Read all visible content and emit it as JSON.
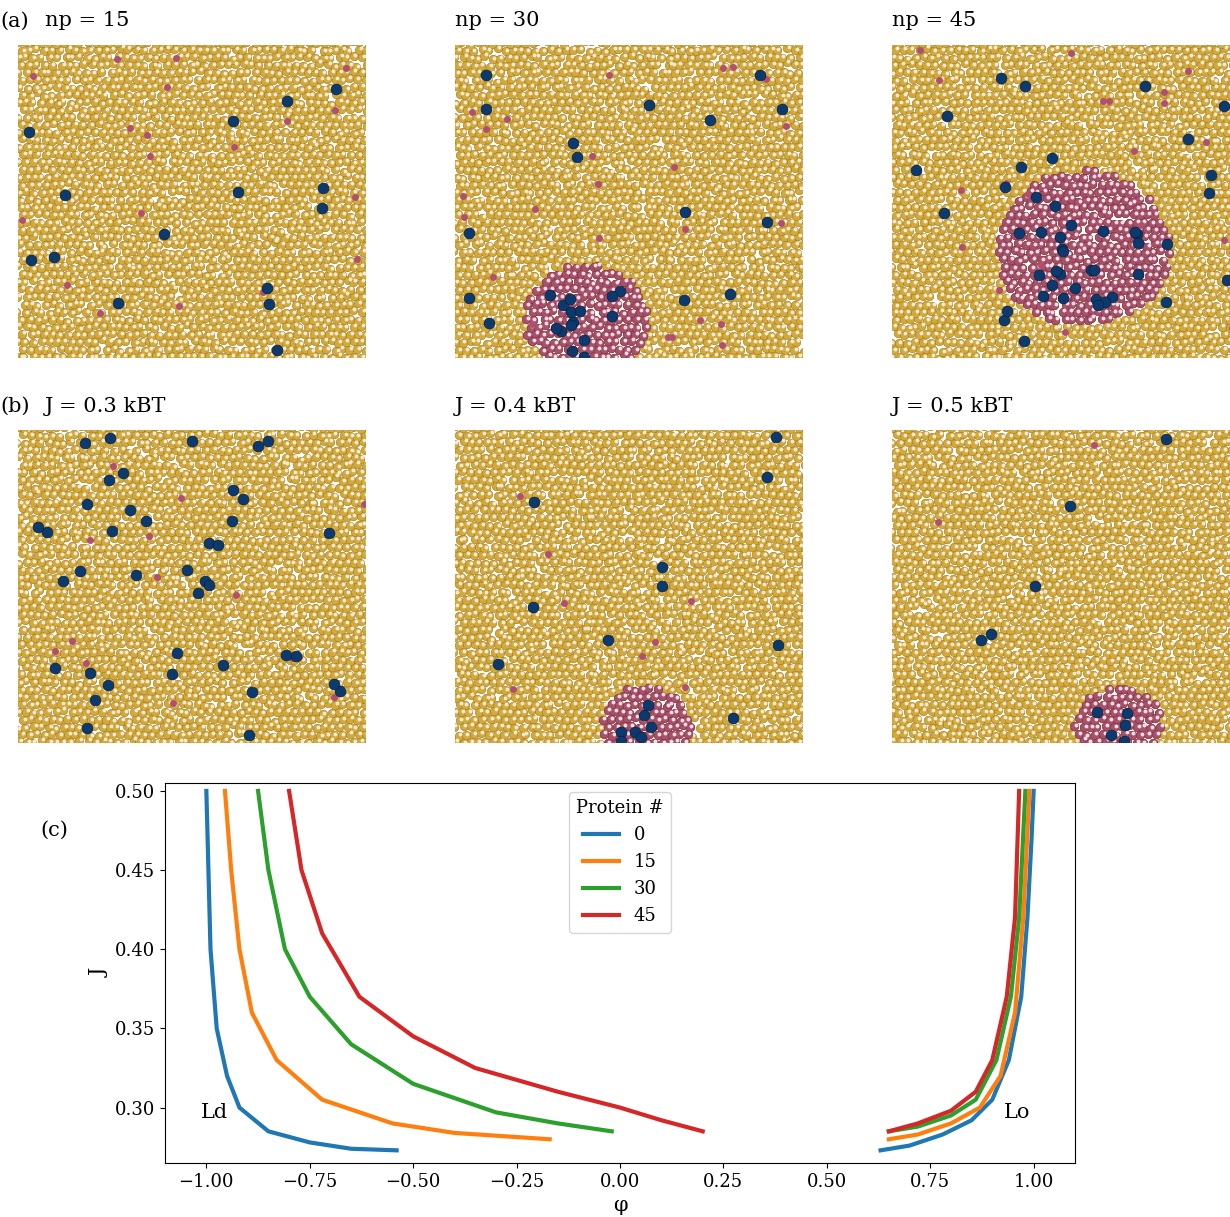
{
  "panels": [
    {
      "label": "(a)",
      "titles": [
        "np = 15",
        "np = 30",
        "np = 45"
      ]
    },
    {
      "label": "(b)",
      "titles": [
        "J = 0.3 kBT",
        "J = 0.4 kBT",
        "J = 0.5 kBT"
      ]
    }
  ],
  "chart_data": {
    "type": "line",
    "label": "(c)",
    "x_label": "φ",
    "y_label": "J",
    "legend": "upper center",
    "legend_title": "Protein #",
    "xlim": [
      -1.1,
      1.1
    ],
    "ylim": [
      0.265,
      0.505
    ],
    "xticks": [
      {
        "value": -1.0,
        "label": "−1.00"
      },
      {
        "value": -0.75,
        "label": "−0.75"
      },
      {
        "value": -0.5,
        "label": "−0.50"
      },
      {
        "value": -0.25,
        "label": "−0.25"
      },
      {
        "value": 0.0,
        "label": "0.00"
      },
      {
        "value": 0.25,
        "label": "0.25"
      },
      {
        "value": 0.5,
        "label": "0.50"
      },
      {
        "value": 0.75,
        "label": "0.75"
      },
      {
        "value": 1.0,
        "label": "1.00"
      }
    ],
    "yticks": [
      {
        "value": 0.3,
        "label": "0.30"
      },
      {
        "value": 0.35,
        "label": "0.35"
      },
      {
        "value": 0.4,
        "label": "0.40"
      },
      {
        "value": 0.45,
        "label": "0.45"
      },
      {
        "value": 0.5,
        "label": "0.50"
      }
    ],
    "annotations": [
      {
        "text": "Ld",
        "x": -0.98,
        "y": 0.297
      },
      {
        "text": "Lo",
        "x": 0.96,
        "y": 0.297
      }
    ],
    "series": [
      {
        "name": "0",
        "color": "#1f77b4",
        "x": [
          -1.0,
          -0.995,
          -0.99,
          -0.975,
          -0.95,
          -0.92,
          -0.85,
          -0.75,
          -0.65,
          -0.54,
          null,
          0.63,
          0.7,
          0.78,
          0.85,
          0.9,
          0.94,
          0.97,
          0.985,
          0.995,
          1.0
        ],
        "values": [
          0.5,
          0.45,
          0.4,
          0.35,
          0.32,
          0.3,
          0.285,
          0.278,
          0.274,
          0.273,
          null,
          0.273,
          0.276,
          0.283,
          0.292,
          0.305,
          0.33,
          0.37,
          0.42,
          0.47,
          0.5
        ]
      },
      {
        "name": "15",
        "color": "#ff7f0e",
        "x": [
          -0.955,
          -0.94,
          -0.92,
          -0.89,
          -0.83,
          -0.72,
          -0.55,
          -0.4,
          -0.17,
          null,
          0.65,
          0.72,
          0.8,
          0.87,
          0.92,
          0.955,
          0.975,
          0.99
        ],
        "values": [
          0.5,
          0.45,
          0.4,
          0.36,
          0.33,
          0.305,
          0.29,
          0.284,
          0.28,
          null,
          0.28,
          0.283,
          0.29,
          0.3,
          0.32,
          0.36,
          0.42,
          0.5
        ]
      },
      {
        "name": "30",
        "color": "#2ca02c",
        "x": [
          -0.875,
          -0.85,
          -0.81,
          -0.75,
          -0.65,
          -0.5,
          -0.3,
          -0.15,
          -0.02,
          null,
          0.65,
          0.72,
          0.8,
          0.86,
          0.91,
          0.945,
          0.965,
          0.98
        ],
        "values": [
          0.5,
          0.45,
          0.4,
          0.37,
          0.34,
          0.315,
          0.297,
          0.29,
          0.285,
          null,
          0.285,
          0.288,
          0.295,
          0.305,
          0.33,
          0.37,
          0.42,
          0.5
        ]
      },
      {
        "name": "45",
        "color": "#d62728",
        "x": [
          -0.8,
          -0.77,
          -0.72,
          -0.63,
          -0.5,
          -0.35,
          -0.15,
          0.0,
          0.1,
          0.2,
          null,
          0.65,
          0.72,
          0.8,
          0.86,
          0.9,
          0.935,
          0.955,
          0.965
        ],
        "values": [
          0.5,
          0.45,
          0.41,
          0.37,
          0.345,
          0.325,
          0.31,
          0.3,
          0.292,
          0.285,
          null,
          0.285,
          0.29,
          0.298,
          0.31,
          0.33,
          0.37,
          0.42,
          0.5
        ]
      }
    ]
  }
}
